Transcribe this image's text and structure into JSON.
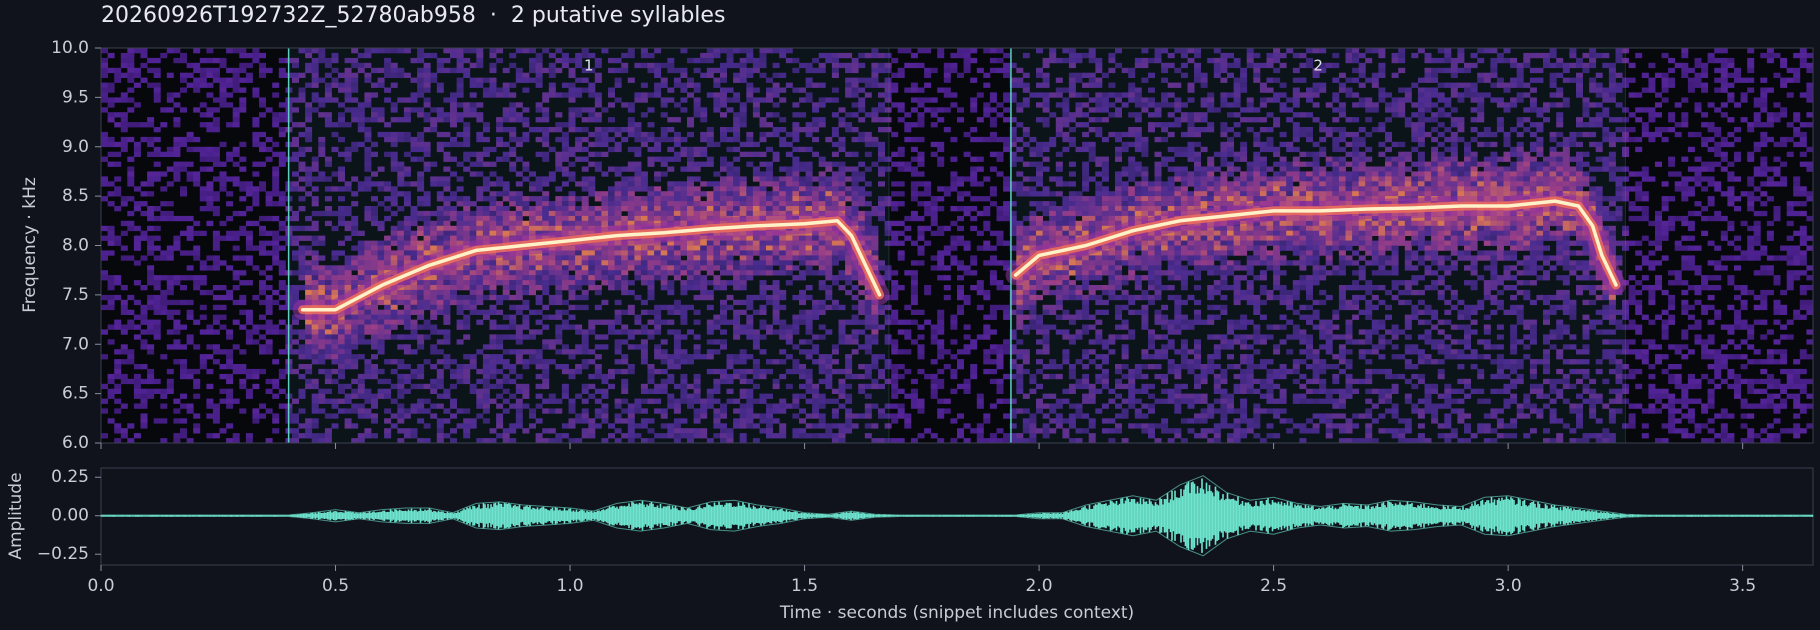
{
  "chart_data": [
    {
      "type": "spectrogram",
      "title": "20260926T192732Z_52780ab958  ·  2 putative syllables",
      "ylabel": "Frequency · kHz",
      "xlim": [
        0,
        3.65
      ],
      "ylim": [
        6,
        10
      ],
      "xticks": [
        0,
        0.5,
        1,
        1.5,
        2,
        2.5,
        3,
        3.5
      ],
      "yticks": [
        {
          "value": 6,
          "label": "6.0"
        },
        {
          "value": 6.5,
          "label": "6.5"
        },
        {
          "value": 7,
          "label": "7.0"
        },
        {
          "value": 7.5,
          "label": "7.5"
        },
        {
          "value": 8,
          "label": "8.0"
        },
        {
          "value": 8.5,
          "label": "8.5"
        },
        {
          "value": 9,
          "label": "9.0"
        },
        {
          "value": 9.5,
          "label": "9.5"
        },
        {
          "value": 10,
          "label": "10.0"
        }
      ],
      "onset_color": "#5fcfc0",
      "syllables": [
        {
          "label": "1",
          "start": 0.4,
          "end": 1.68,
          "contour": {
            "x": [
              0.43,
              0.5,
              0.6,
              0.7,
              0.8,
              0.9,
              1.0,
              1.1,
              1.2,
              1.3,
              1.4,
              1.5,
              1.57,
              1.6,
              1.63,
              1.66
            ],
            "y": [
              7.35,
              7.35,
              7.6,
              7.8,
              7.95,
              8.0,
              8.05,
              8.1,
              8.13,
              8.17,
              8.2,
              8.22,
              8.25,
              8.1,
              7.8,
              7.5
            ]
          }
        },
        {
          "label": "2",
          "start": 1.94,
          "end": 3.25,
          "contour": {
            "x": [
              1.95,
              2.0,
              2.1,
              2.2,
              2.3,
              2.4,
              2.5,
              2.6,
              2.7,
              2.8,
              2.9,
              3.0,
              3.1,
              3.15,
              3.18,
              3.2,
              3.23
            ],
            "y": [
              7.7,
              7.9,
              8.0,
              8.15,
              8.25,
              8.3,
              8.35,
              8.35,
              8.37,
              8.38,
              8.4,
              8.4,
              8.45,
              8.4,
              8.2,
              7.9,
              7.6
            ]
          }
        }
      ]
    },
    {
      "type": "waveform",
      "ylabel": "Amplitude",
      "xlabel": "Time · seconds (snippet includes context)",
      "color": "#6ee6cf",
      "xlim": [
        0,
        3.65
      ],
      "ylim": [
        -0.32,
        0.31
      ],
      "xticks": [
        {
          "value": 0,
          "label": "0.0"
        },
        {
          "value": 0.5,
          "label": "0.5"
        },
        {
          "value": 1,
          "label": "1.0"
        },
        {
          "value": 1.5,
          "label": "1.5"
        },
        {
          "value": 2,
          "label": "2.0"
        },
        {
          "value": 2.5,
          "label": "2.5"
        },
        {
          "value": 3,
          "label": "3.0"
        },
        {
          "value": 3.5,
          "label": "3.5"
        }
      ],
      "yticks": [
        {
          "value": -0.25,
          "label": "−0.25"
        },
        {
          "value": 0,
          "label": "0.00"
        },
        {
          "value": 0.25,
          "label": "0.25"
        }
      ],
      "x": [
        0,
        0.05,
        0.1,
        0.15,
        0.2,
        0.25,
        0.3,
        0.35,
        0.4,
        0.45,
        0.5,
        0.55,
        0.6,
        0.65,
        0.7,
        0.75,
        0.8,
        0.85,
        0.9,
        0.95,
        1.0,
        1.05,
        1.1,
        1.15,
        1.2,
        1.25,
        1.3,
        1.35,
        1.4,
        1.45,
        1.5,
        1.55,
        1.6,
        1.65,
        1.7,
        1.75,
        1.8,
        1.85,
        1.9,
        1.95,
        2.0,
        2.05,
        2.1,
        2.15,
        2.2,
        2.25,
        2.3,
        2.35,
        2.4,
        2.45,
        2.5,
        2.55,
        2.6,
        2.65,
        2.7,
        2.75,
        2.8,
        2.85,
        2.9,
        2.95,
        3.0,
        3.05,
        3.1,
        3.15,
        3.2,
        3.25,
        3.3,
        3.35,
        3.4,
        3.45,
        3.5,
        3.55,
        3.6,
        3.65
      ],
      "values": [
        0.005,
        0.005,
        0.005,
        0.005,
        0.005,
        0.005,
        0.005,
        0.005,
        0.005,
        0.02,
        0.04,
        0.02,
        0.04,
        0.05,
        0.05,
        0.02,
        0.08,
        0.09,
        0.07,
        0.06,
        0.05,
        0.03,
        0.08,
        0.1,
        0.08,
        0.05,
        0.09,
        0.1,
        0.07,
        0.05,
        0.02,
        0.01,
        0.03,
        0.01,
        0.005,
        0.005,
        0.005,
        0.005,
        0.005,
        0.005,
        0.02,
        0.02,
        0.07,
        0.1,
        0.13,
        0.1,
        0.2,
        0.26,
        0.15,
        0.1,
        0.12,
        0.08,
        0.06,
        0.08,
        0.07,
        0.1,
        0.09,
        0.07,
        0.06,
        0.12,
        0.13,
        0.1,
        0.07,
        0.05,
        0.03,
        0.01,
        0.005,
        0.005,
        0.005,
        0.005,
        0.005,
        0.005,
        0.005,
        0.005
      ]
    }
  ]
}
